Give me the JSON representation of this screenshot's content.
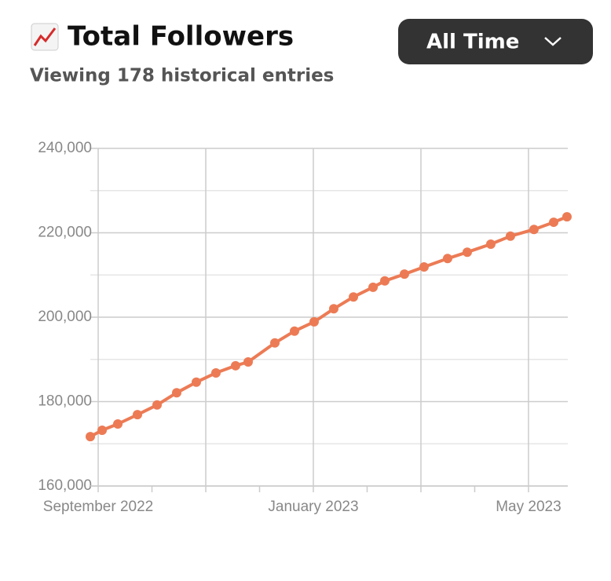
{
  "chart_data": {
    "type": "line",
    "title": "Total Followers",
    "subtitle": "Viewing 178 historical entries",
    "dropdown": "All Time",
    "color": "#ec7b55",
    "x": [
      2022.6545,
      2022.6728,
      2022.6971,
      2022.7275,
      2022.7579,
      2022.7883,
      2022.8187,
      2022.8491,
      2022.8795,
      2022.899,
      2022.9404,
      2022.9708,
      2023.0012,
      2023.0316,
      2023.0621,
      2023.0925,
      2023.1107,
      2023.1411,
      2023.1715,
      2023.208,
      2023.2384,
      2023.2749,
      2023.3053,
      2023.3418,
      2023.3723,
      2023.3929
    ],
    "values": [
      171700,
      173200,
      174700,
      176900,
      179200,
      182100,
      184600,
      186800,
      188500,
      189400,
      193900,
      196700,
      198900,
      202000,
      204800,
      207100,
      208600,
      210200,
      211900,
      213900,
      215400,
      217300,
      219200,
      220800,
      222500,
      223800
    ],
    "xlim": [
      2022.6545,
      2023.3942
    ],
    "xticks": [
      {
        "value": 2022.6667,
        "label": "September 2022"
      },
      {
        "value": 2023.0,
        "label": "January 2023"
      },
      {
        "value": 2023.3333,
        "label": "May 2023"
      }
    ],
    "ylim": [
      160000,
      240000
    ],
    "yticks": [
      {
        "value": 160000,
        "label": "160,000"
      },
      {
        "value": 180000,
        "label": "180,000"
      },
      {
        "value": 200000,
        "label": "200,000"
      },
      {
        "value": 220000,
        "label": "220,000"
      },
      {
        "value": 240000,
        "label": "240,000"
      }
    ],
    "grid": true
  }
}
